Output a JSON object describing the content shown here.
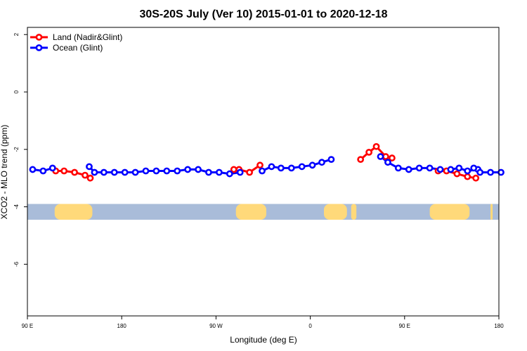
{
  "chart_data": {
    "type": "line",
    "title": "30S-20S July (Ver 10)   2015-01-01 to 2020-12-18",
    "xlabel": "Longitude (deg E)",
    "ylabel": "XCO2 - MLO trend (ppm)",
    "xlim": [
      90,
      540
    ],
    "ylim": [
      -7.8,
      2.25
    ],
    "x_ticks": [
      {
        "value": 90,
        "label": "90 E"
      },
      {
        "value": 180,
        "label": "180"
      },
      {
        "value": 270,
        "label": "90 W"
      },
      {
        "value": 360,
        "label": "0"
      },
      {
        "value": 450,
        "label": "90 E"
      },
      {
        "value": 540,
        "label": "180"
      }
    ],
    "y_ticks": [
      {
        "value": 2,
        "label": "2"
      },
      {
        "value": 0,
        "label": "0"
      },
      {
        "value": -2,
        "label": "-2"
      },
      {
        "value": -4,
        "label": "-4"
      },
      {
        "value": -6,
        "label": "-6"
      }
    ],
    "series": [
      {
        "name": "Land (Nadir&Glint)",
        "color": "#ff0000",
        "segments": [
          [
            [
              117,
              -2.75
            ],
            [
              125,
              -2.75
            ],
            [
              135,
              -2.8
            ],
            [
              145,
              -2.9
            ],
            [
              150,
              -3.0
            ]
          ],
          [
            [
              287,
              -2.7
            ],
            [
              292,
              -2.7
            ],
            [
              302,
              -2.8
            ],
            [
              312,
              -2.55
            ]
          ],
          [
            [
              408,
              -2.35
            ],
            [
              416,
              -2.1
            ],
            [
              423,
              -1.9
            ],
            [
              432,
              -2.25
            ],
            [
              438,
              -2.3
            ]
          ],
          [
            [
              482,
              -2.75
            ],
            [
              490,
              -2.75
            ],
            [
              500,
              -2.85
            ],
            [
              510,
              -2.95
            ],
            [
              518,
              -3.0
            ]
          ]
        ]
      },
      {
        "name": "Ocean (Glint)",
        "color": "#0000ff",
        "segments": [
          [
            [
              95,
              -2.7
            ],
            [
              105,
              -2.75
            ],
            [
              114,
              -2.65
            ]
          ],
          [
            [
              149,
              -2.6
            ],
            [
              154,
              -2.8
            ],
            [
              163,
              -2.8
            ],
            [
              173,
              -2.8
            ],
            [
              183,
              -2.8
            ],
            [
              193,
              -2.8
            ],
            [
              203,
              -2.75
            ],
            [
              213,
              -2.75
            ],
            [
              223,
              -2.75
            ],
            [
              233,
              -2.75
            ],
            [
              243,
              -2.7
            ],
            [
              253,
              -2.7
            ],
            [
              263,
              -2.8
            ],
            [
              273,
              -2.8
            ],
            [
              283,
              -2.85
            ],
            [
              293,
              -2.8
            ]
          ],
          [
            [
              314,
              -2.75
            ],
            [
              323,
              -2.6
            ],
            [
              332,
              -2.65
            ],
            [
              342,
              -2.65
            ],
            [
              352,
              -2.6
            ],
            [
              362,
              -2.55
            ],
            [
              371,
              -2.45
            ],
            [
              380,
              -2.35
            ]
          ],
          [
            [
              427,
              -2.25
            ],
            [
              434,
              -2.45
            ],
            [
              444,
              -2.65
            ],
            [
              454,
              -2.7
            ],
            [
              464,
              -2.65
            ],
            [
              474,
              -2.65
            ],
            [
              484,
              -2.7
            ],
            [
              494,
              -2.7
            ],
            [
              502,
              -2.65
            ],
            [
              510,
              -2.75
            ],
            [
              520,
              -2.7
            ]
          ],
          [
            [
              516,
              -2.65
            ],
            [
              522,
              -2.8
            ],
            [
              532,
              -2.8
            ],
            [
              542,
              -2.8
            ]
          ]
        ]
      }
    ],
    "legend": {
      "placement": "top-left",
      "entries": [
        "Land (Nadir&Glint)",
        "Ocean (Glint)"
      ]
    },
    "land_band": {
      "y_range": [
        -4.45,
        -3.9
      ],
      "ocean_color": "#a9bcd9",
      "land_color": "#ffd97a",
      "land_x_ranges": [
        [
          116,
          152
        ],
        [
          289,
          318
        ],
        [
          373,
          395
        ],
        [
          399,
          404
        ],
        [
          474,
          512
        ],
        [
          532,
          534
        ]
      ]
    }
  }
}
